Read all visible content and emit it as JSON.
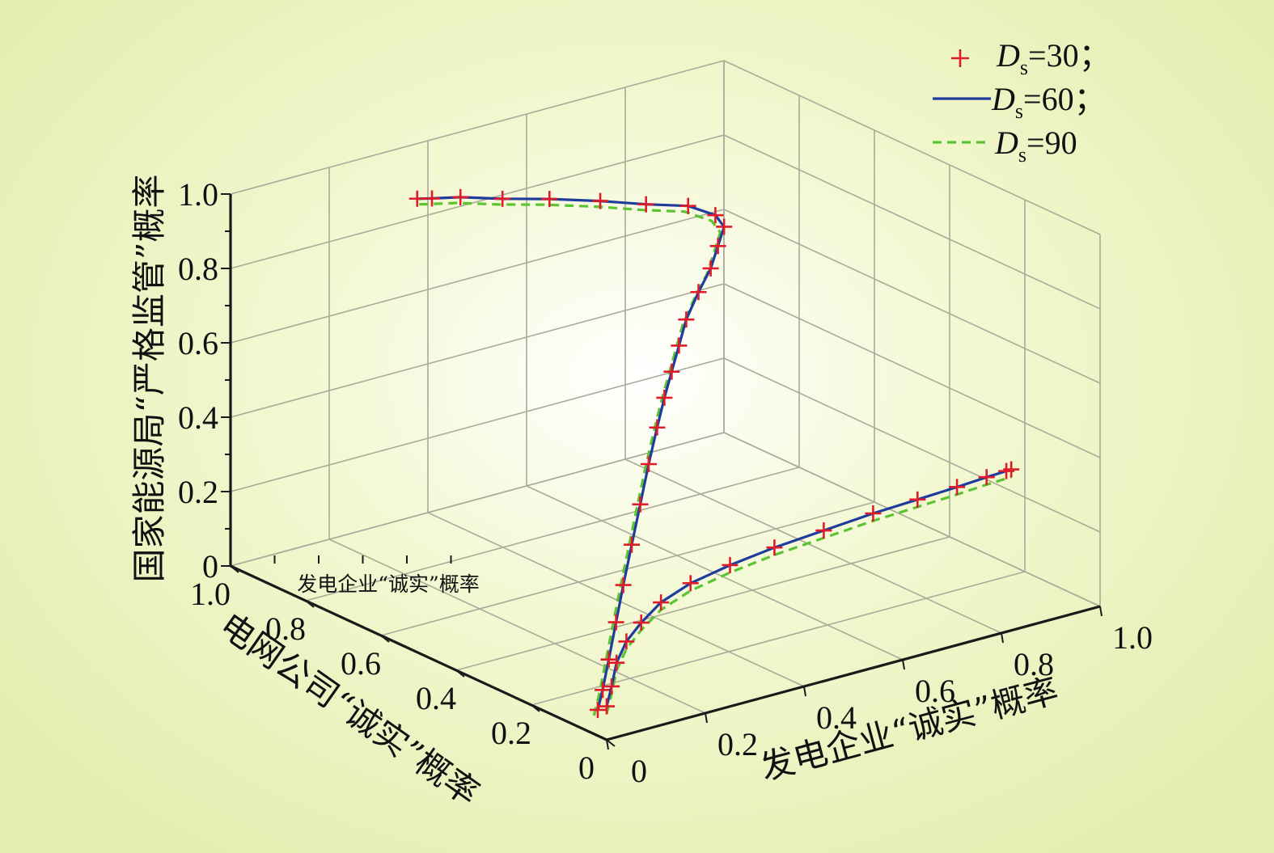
{
  "chart_data": {
    "type": "line3d",
    "title": "",
    "axes": {
      "x": {
        "label": "发电企业“诚实”概率",
        "ticks": [
          "0",
          "0.2",
          "0.4",
          "0.6",
          "0.8",
          "1.0"
        ],
        "range": [
          0,
          1
        ]
      },
      "y": {
        "label": "电网公司“诚实”概率",
        "ticks": [
          "0",
          "0.2",
          "0.4",
          "0.6",
          "0.8",
          "1.0"
        ],
        "range": [
          0,
          1
        ]
      },
      "z": {
        "label": "国家能源局“严格监管”概率",
        "ticks": [
          "0",
          "0.2",
          "0.4",
          "0.6",
          "0.8",
          "1.0"
        ],
        "range": [
          0,
          1
        ]
      }
    },
    "inset_label": "发电企业“诚实”概率",
    "grid": true,
    "legend_position": "top-right",
    "legend": [
      {
        "name_main": "D",
        "name_sub": "s",
        "name_rest": "=30；",
        "style": "plus",
        "color": "#e01b2a"
      },
      {
        "name_main": "D",
        "name_sub": "s",
        "name_rest": "=60；",
        "style": "solid",
        "color": "#1f3b9c"
      },
      {
        "name_main": "D",
        "name_sub": "s",
        "name_rest": "=90",
        "style": "dashed",
        "color": "#5cc332"
      }
    ],
    "trajectories": [
      {
        "name": "main",
        "x": [
          0.02,
          0.03,
          0.05,
          0.08,
          0.11,
          0.15,
          0.19,
          0.23,
          0.27,
          0.3,
          0.33,
          0.36,
          0.39,
          0.43,
          0.47,
          0.5,
          0.52,
          0.51,
          0.47,
          0.4,
          0.33,
          0.25,
          0.17,
          0.1,
          0.05,
          0.02
        ],
        "y": [
          0.05,
          0.05,
          0.06,
          0.08,
          0.1,
          0.13,
          0.16,
          0.19,
          0.22,
          0.24,
          0.26,
          0.28,
          0.3,
          0.32,
          0.34,
          0.36,
          0.37,
          0.38,
          0.4,
          0.42,
          0.45,
          0.48,
          0.5,
          0.52,
          0.53,
          0.53
        ],
        "z": [
          0.05,
          0.1,
          0.17,
          0.25,
          0.33,
          0.41,
          0.49,
          0.57,
          0.64,
          0.7,
          0.75,
          0.8,
          0.85,
          0.9,
          0.94,
          0.98,
          1.02,
          1.05,
          1.08,
          1.1,
          1.12,
          1.14,
          1.16,
          1.18,
          1.19,
          1.2
        ]
      },
      {
        "name": "inset",
        "x": [
          0.0,
          0.01,
          0.02,
          0.04,
          0.07,
          0.11,
          0.17,
          0.25,
          0.34,
          0.44,
          0.54,
          0.63,
          0.71,
          0.77,
          0.81,
          0.82
        ],
        "y": [
          0.0,
          0.0,
          0.0,
          0.0,
          0.0,
          0.0,
          0.0,
          0.0,
          0.0,
          0.0,
          0.0,
          0.0,
          0.0,
          0.0,
          0.0,
          0.0
        ],
        "z": [
          0.09,
          0.14,
          0.2,
          0.25,
          0.29,
          0.33,
          0.36,
          0.38,
          0.395,
          0.405,
          0.415,
          0.42,
          0.425,
          0.43,
          0.432,
          0.433
        ]
      }
    ]
  }
}
